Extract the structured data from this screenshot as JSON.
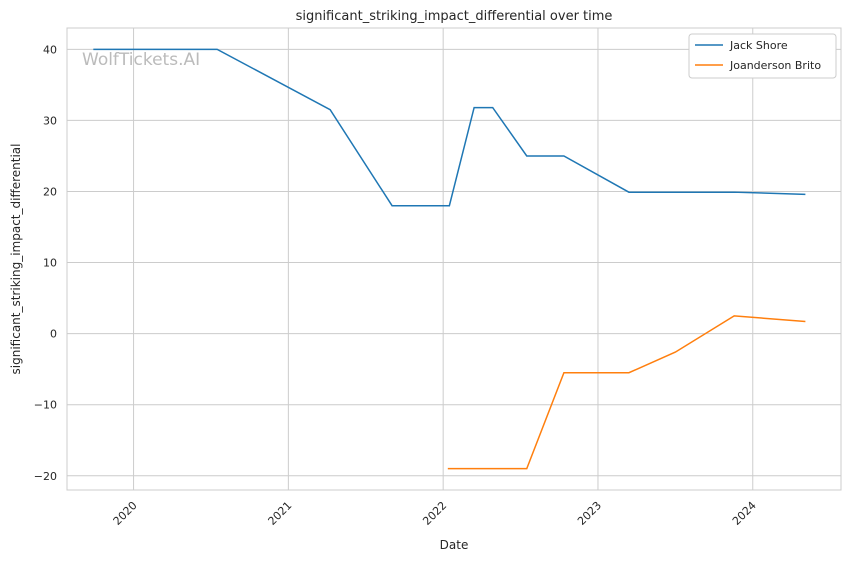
{
  "chart_data": {
    "type": "line",
    "title": "significant_striking_impact_differential over time",
    "xlabel": "Date",
    "ylabel": "significant_striking_impact_differential",
    "watermark": "WolfTickets.AI",
    "xlim": [
      2019.57,
      2024.57
    ],
    "ylim": [
      -22,
      43
    ],
    "xticks": [
      {
        "v": 2020,
        "label": "2020"
      },
      {
        "v": 2021,
        "label": "2021"
      },
      {
        "v": 2022,
        "label": "2022"
      },
      {
        "v": 2023,
        "label": "2023"
      },
      {
        "v": 2024,
        "label": "2024"
      }
    ],
    "yticks": [
      {
        "v": -20,
        "label": "−20"
      },
      {
        "v": -10,
        "label": "−10"
      },
      {
        "v": 0,
        "label": "0"
      },
      {
        "v": 10,
        "label": "10"
      },
      {
        "v": 20,
        "label": "20"
      },
      {
        "v": 30,
        "label": "30"
      },
      {
        "v": 40,
        "label": "40"
      }
    ],
    "grid": true,
    "legend_position": "top-right",
    "series": [
      {
        "name": "Jack Shore",
        "color": "#1f77b4",
        "x": [
          2019.74,
          2020.54,
          2021.27,
          2021.67,
          2022.04,
          2022.2,
          2022.32,
          2022.54,
          2022.78,
          2023.2,
          2023.88,
          2024.34
        ],
        "y": [
          40,
          40,
          31.5,
          18,
          18,
          31.8,
          31.8,
          25,
          25,
          19.9,
          19.9,
          19.6
        ]
      },
      {
        "name": "Joanderson Brito",
        "color": "#ff7f0e",
        "x": [
          2022.03,
          2022.54,
          2022.78,
          2023.2,
          2023.5,
          2023.88,
          2024.34
        ],
        "y": [
          -19,
          -19,
          -5.5,
          -5.5,
          -2.6,
          2.5,
          1.7
        ]
      }
    ]
  }
}
